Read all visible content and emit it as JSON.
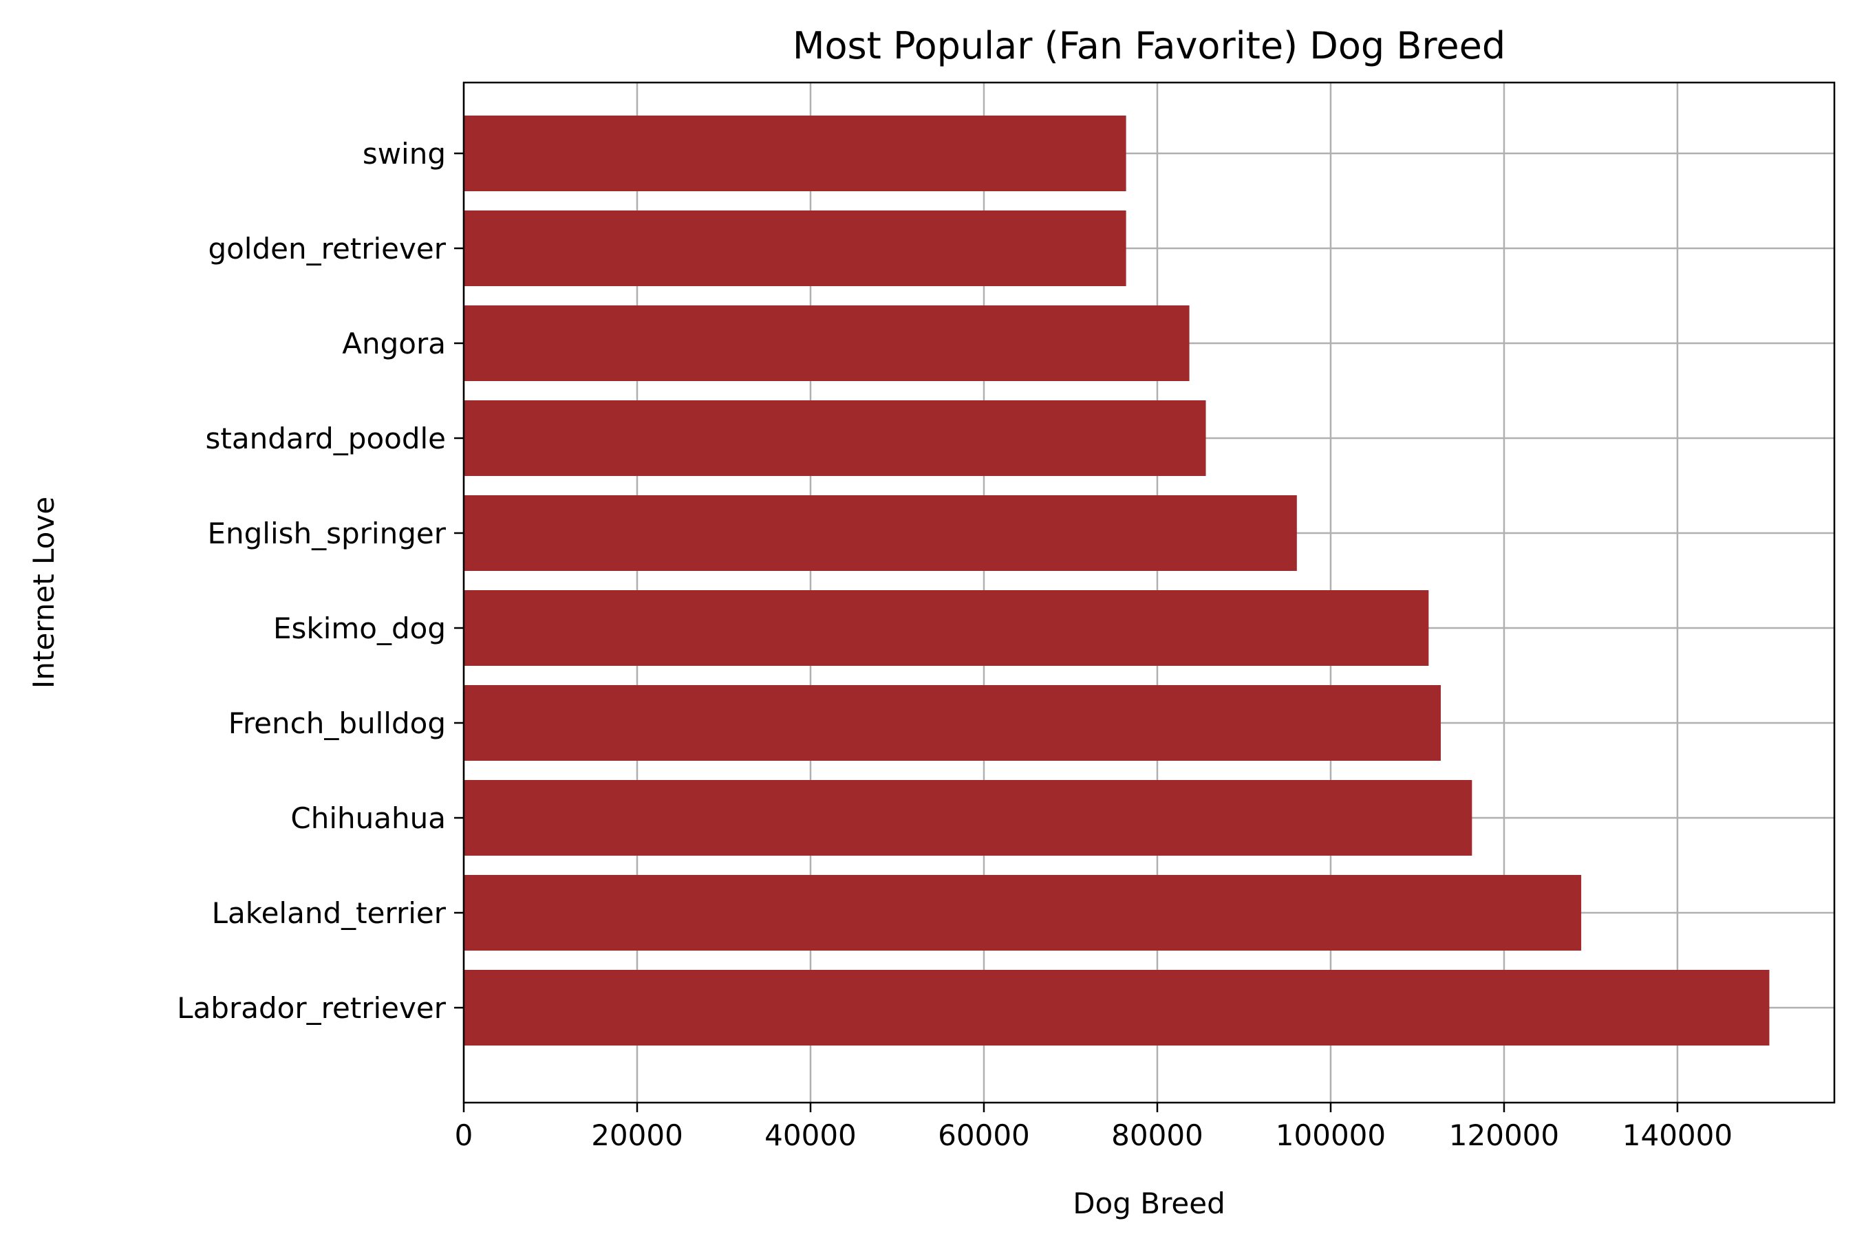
{
  "chart_data": {
    "type": "bar",
    "orientation": "horizontal",
    "title": "Most Popular (Fan Favorite) Dog Breed",
    "xlabel": "Dog Breed",
    "ylabel": "Internet Love",
    "categories": [
      "Labrador_retriever",
      "Lakeland_terrier",
      "Chihuahua",
      "French_bulldog",
      "Eskimo_dog",
      "English_springer",
      "standard_poodle",
      "Angora",
      "golden_retriever",
      "swing"
    ],
    "values": [
      150600,
      128900,
      116300,
      112700,
      111300,
      96100,
      85600,
      83700,
      76400,
      76400
    ],
    "xlim": [
      0,
      158100
    ],
    "xticks": [
      0,
      20000,
      40000,
      60000,
      80000,
      100000,
      120000,
      140000
    ],
    "bar_color": "#a0292b",
    "grid": true
  }
}
